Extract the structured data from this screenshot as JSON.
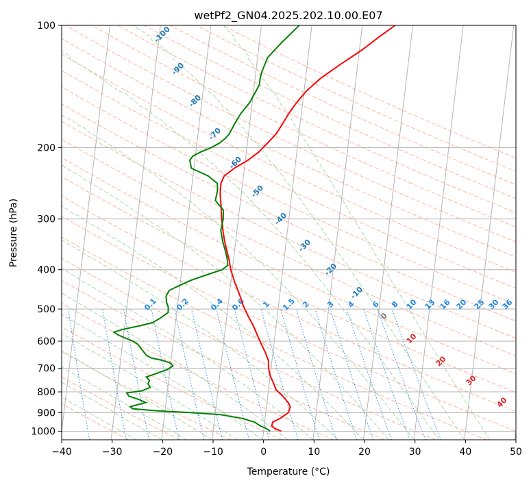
{
  "chart_data": {
    "type": "line",
    "title": "wetPf2_GN04.2025.202.10.00.E07",
    "xlabel": "Temperature (°C)",
    "ylabel": "Pressure (hPa)",
    "xlim": [
      -40,
      50
    ],
    "ylim": [
      1050,
      100
    ],
    "y_scale": "log",
    "grid": true,
    "x_ticks": [
      "−40",
      "−30",
      "−20",
      "−10",
      "0",
      "10",
      "20",
      "30",
      "40",
      "50"
    ],
    "y_ticks": [
      "100",
      "200",
      "300",
      "400",
      "500",
      "600",
      "700",
      "800",
      "900",
      "1000"
    ],
    "series": [
      {
        "color": "#ff0000",
        "pressure": [
          1000,
          985,
          970,
          950,
          930,
          900,
          870,
          850,
          820,
          790,
          760,
          730,
          700,
          670,
          640,
          610,
          580,
          550,
          520,
          490,
          460,
          430,
          400,
          380,
          360,
          340,
          320,
          300,
          280,
          260,
          245,
          235,
          225,
          215,
          205,
          195,
          185,
          175,
          165,
          155,
          145,
          135,
          125,
          115,
          107,
          100
        ],
        "values": [
          3.5,
          2.2,
          1.5,
          1.6,
          3.0,
          4.5,
          4.7,
          4.2,
          3.0,
          1.5,
          0.8,
          0.0,
          -0.5,
          -0.7,
          -1.5,
          -2.5,
          -3.5,
          -4.5,
          -5.8,
          -7.0,
          -8.0,
          -9.2,
          -10.3,
          -10.8,
          -11.5,
          -12.2,
          -12.8,
          -13.3,
          -13.7,
          -14.2,
          -14.3,
          -13.8,
          -12.0,
          -9.5,
          -7.5,
          -6.0,
          -4.5,
          -3.5,
          -2.5,
          -1.2,
          0.5,
          3.0,
          6.5,
          10.5,
          13.5,
          16.5
        ]
      },
      {
        "color": "#008000",
        "pressure": [
          1000,
          985,
          970,
          950,
          930,
          910,
          900,
          890,
          880,
          870,
          860,
          850,
          835,
          820,
          805,
          795,
          780,
          765,
          750,
          735,
          720,
          705,
          690,
          680,
          670,
          660,
          650,
          640,
          630,
          620,
          610,
          600,
          590,
          580,
          570,
          560,
          550,
          540,
          525,
          510,
          495,
          480,
          465,
          450,
          440,
          425,
          410,
          400,
          390,
          375,
          360,
          340,
          320,
          300,
          285,
          270,
          255,
          245,
          235,
          225,
          215,
          210,
          205,
          200,
          195,
          190,
          185,
          175,
          165,
          155,
          145,
          140,
          135,
          130,
          120,
          110,
          100
        ],
        "values": [
          1.3,
          0.5,
          -0.8,
          -2.0,
          -4.5,
          -9.0,
          -15.0,
          -22.0,
          -26.5,
          -27.0,
          -25.5,
          -24.0,
          -25.5,
          -27.5,
          -28.0,
          -25.0,
          -23.5,
          -24.0,
          -23.8,
          -24.5,
          -22.5,
          -20.5,
          -19.5,
          -20.0,
          -21.5,
          -24.0,
          -25.0,
          -25.5,
          -26.0,
          -26.5,
          -27.0,
          -28.0,
          -29.5,
          -31.0,
          -32.0,
          -30.0,
          -27.0,
          -24.5,
          -23.0,
          -21.7,
          -21.8,
          -22.3,
          -22.5,
          -22.0,
          -20.5,
          -18.0,
          -14.5,
          -12.0,
          -11.0,
          -11.3,
          -11.8,
          -12.6,
          -13.2,
          -13.0,
          -13.2,
          -15.0,
          -14.8,
          -15.0,
          -17.0,
          -20.5,
          -21.0,
          -20.5,
          -19.0,
          -17.0,
          -15.5,
          -14.5,
          -13.8,
          -13.0,
          -12.0,
          -10.5,
          -9.5,
          -9.0,
          -9.0,
          -8.8,
          -8.0,
          -5.5,
          -2.5
        ]
      }
    ],
    "dry_adiabat_labels": [
      "-100",
      "-90",
      "-80",
      "-70",
      "-60",
      "-50",
      "-40",
      "-30",
      "-20",
      "-10"
    ],
    "moist_adiabat_labels": [
      "0",
      "10",
      "20",
      "30",
      "40"
    ],
    "mixing_ratio_labels": [
      "0.1",
      "0.2",
      "0.4",
      "0.6",
      "1",
      "1.5",
      "2",
      "3",
      "4",
      "6",
      "8",
      "10",
      "13",
      "16",
      "20",
      "25",
      "30",
      "36"
    ],
    "colors": {
      "isotherm": "#b3b3b3",
      "isobar": "#b3b3b3",
      "dry_adiabat": "#ffb39a",
      "moist_adiabat": "#a8d8a8",
      "mixing_ratio": "#1e88e5",
      "hidden_adiabat": "#e8c9a0"
    }
  }
}
